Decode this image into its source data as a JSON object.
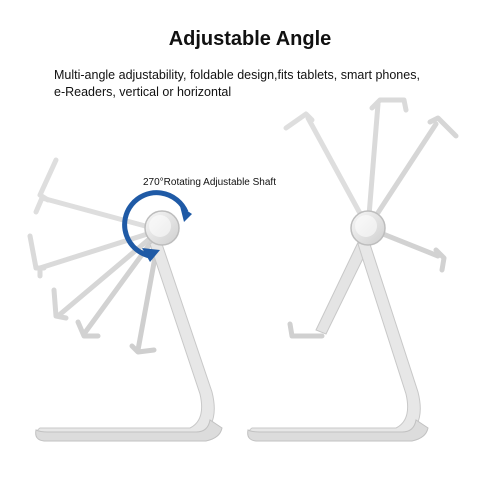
{
  "header": {
    "title": "Adjustable Angle",
    "description_line1": "Multi-angle adjustability, foldable design,fits tablets, smart phones,",
    "description_line2": "e-Readers, vertical or horizontal"
  },
  "callout": {
    "label": "270°Rotating Adjustable Shaft"
  },
  "colors": {
    "silver": "#e6e6e6",
    "silver_edge": "#c9c9c9",
    "ghost": "#efefef",
    "ghost_edge": "#dcdcdc",
    "arrow": "#1f5aa6"
  }
}
